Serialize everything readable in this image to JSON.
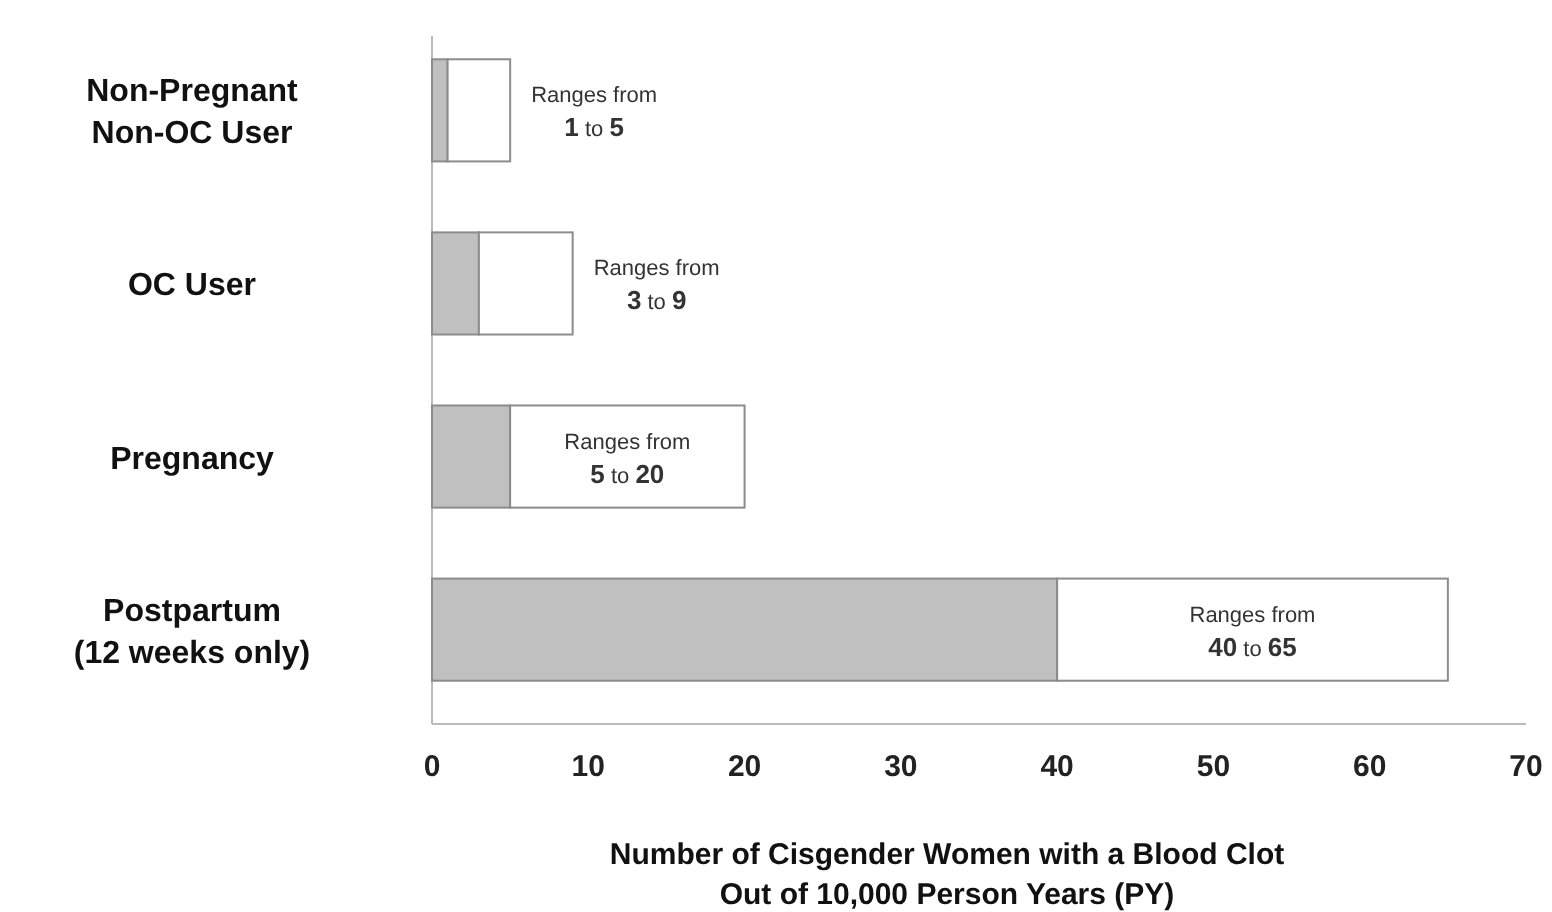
{
  "chart_data": {
    "type": "bar",
    "orientation": "horizontal",
    "stacked": true,
    "xlabel": "Number of Cisgender Women with a Blood Clot\nOut of 10,000 Person Years (PY)",
    "categories": [
      "Non-Pregnant\nNon-OC User",
      "OC User",
      "Pregnancy",
      "Postpartum\n(12 weeks only)"
    ],
    "series": [
      {
        "color": "#c0c0c0",
        "values": [
          1,
          3,
          5,
          40
        ]
      },
      {
        "color": "#ffffff",
        "values": [
          4,
          6,
          15,
          25
        ]
      }
    ],
    "xlim": [
      0,
      70
    ],
    "xticks": [
      0,
      10,
      20,
      30,
      40,
      50,
      60,
      70
    ],
    "grid": false,
    "annotations": [
      "Ranges from\n1 to 5",
      "Ranges from\n3 to 9",
      "Ranges from\n5  to  20",
      "Ranges from\n40  to  65"
    ]
  }
}
